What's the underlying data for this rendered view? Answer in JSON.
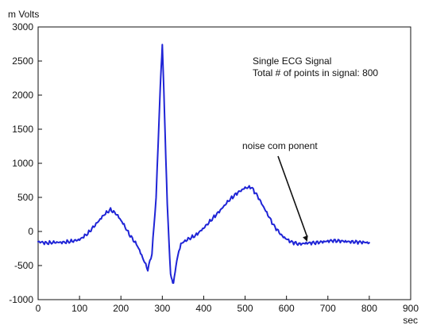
{
  "chart_data": {
    "type": "line",
    "title": "",
    "xlabel": "sec",
    "ylabel": "m Volts",
    "xlim": [
      0,
      900
    ],
    "ylim": [
      -1000,
      3000
    ],
    "xticks": [
      "0",
      "100",
      "200",
      "300",
      "400",
      "500",
      "600",
      "700",
      "800",
      "900"
    ],
    "yticks": [
      "3000",
      "2500",
      "2000",
      "1500",
      "1000",
      "500",
      "0",
      "-500",
      "-1000"
    ],
    "grid": false,
    "legend": "",
    "series_color": "#1f24d6",
    "annotation_lines": [
      "Single ECG Signal",
      "Total # of points in signal: 800"
    ],
    "noise_annotation": {
      "label": "noise com ponent",
      "target_x": 650,
      "target_y": -150
    },
    "series": [
      {
        "x": [
          0,
          20,
          40,
          60,
          80,
          100,
          120,
          140,
          160,
          175,
          190,
          205,
          220,
          240,
          255,
          265,
          275,
          285,
          295,
          300,
          305,
          312,
          320,
          327,
          335,
          345,
          360,
          380,
          400,
          420,
          440,
          460,
          480,
          500,
          515,
          530,
          550,
          570,
          590,
          610,
          630,
          650,
          670,
          690,
          710,
          730,
          750,
          770,
          790,
          800
        ],
        "y": [
          -150,
          -170,
          -160,
          -160,
          -145,
          -120,
          -30,
          110,
          250,
          320,
          250,
          120,
          -40,
          -210,
          -420,
          -560,
          -320,
          500,
          2100,
          2750,
          1800,
          400,
          -650,
          -760,
          -420,
          -180,
          -120,
          -60,
          50,
          180,
          310,
          450,
          560,
          640,
          650,
          520,
          300,
          80,
          -70,
          -150,
          -185,
          -170,
          -165,
          -150,
          -135,
          -140,
          -150,
          -155,
          -160,
          -165
        ]
      }
    ]
  }
}
